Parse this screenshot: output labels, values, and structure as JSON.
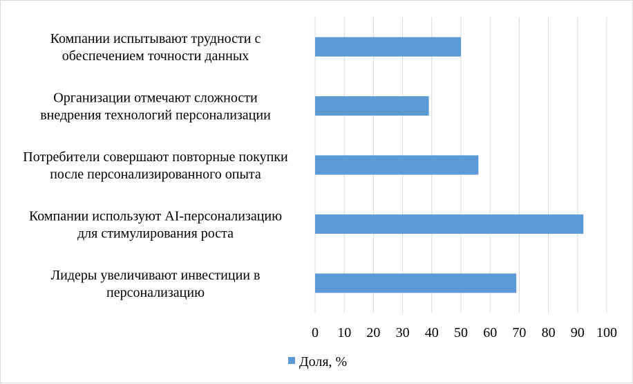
{
  "chart_data": {
    "type": "bar",
    "orientation": "horizontal",
    "categories": [
      [
        "Компании испытывают трудности с",
        "обеспечением точности данных"
      ],
      [
        "Организации отмечают сложности",
        "внедрения технологий персонализации"
      ],
      [
        "Потребители совершают повторные покупки",
        "после персонализированного опыта"
      ],
      [
        "Компании используют AI-персонализацию",
        "для стимулирования роста"
      ],
      [
        "Лидеры увеличивают инвестиции в",
        "персонализацию"
      ]
    ],
    "series": [
      {
        "name": "Доля, %",
        "values": [
          50,
          39,
          56,
          92,
          69
        ],
        "color": "#5b9bd5"
      }
    ],
    "xlim": [
      0,
      100
    ],
    "xticks": [
      "0",
      "10",
      "20",
      "30",
      "40",
      "50",
      "60",
      "70",
      "80",
      "90",
      "100"
    ],
    "grid": "vertical",
    "legend_position": "bottom"
  }
}
